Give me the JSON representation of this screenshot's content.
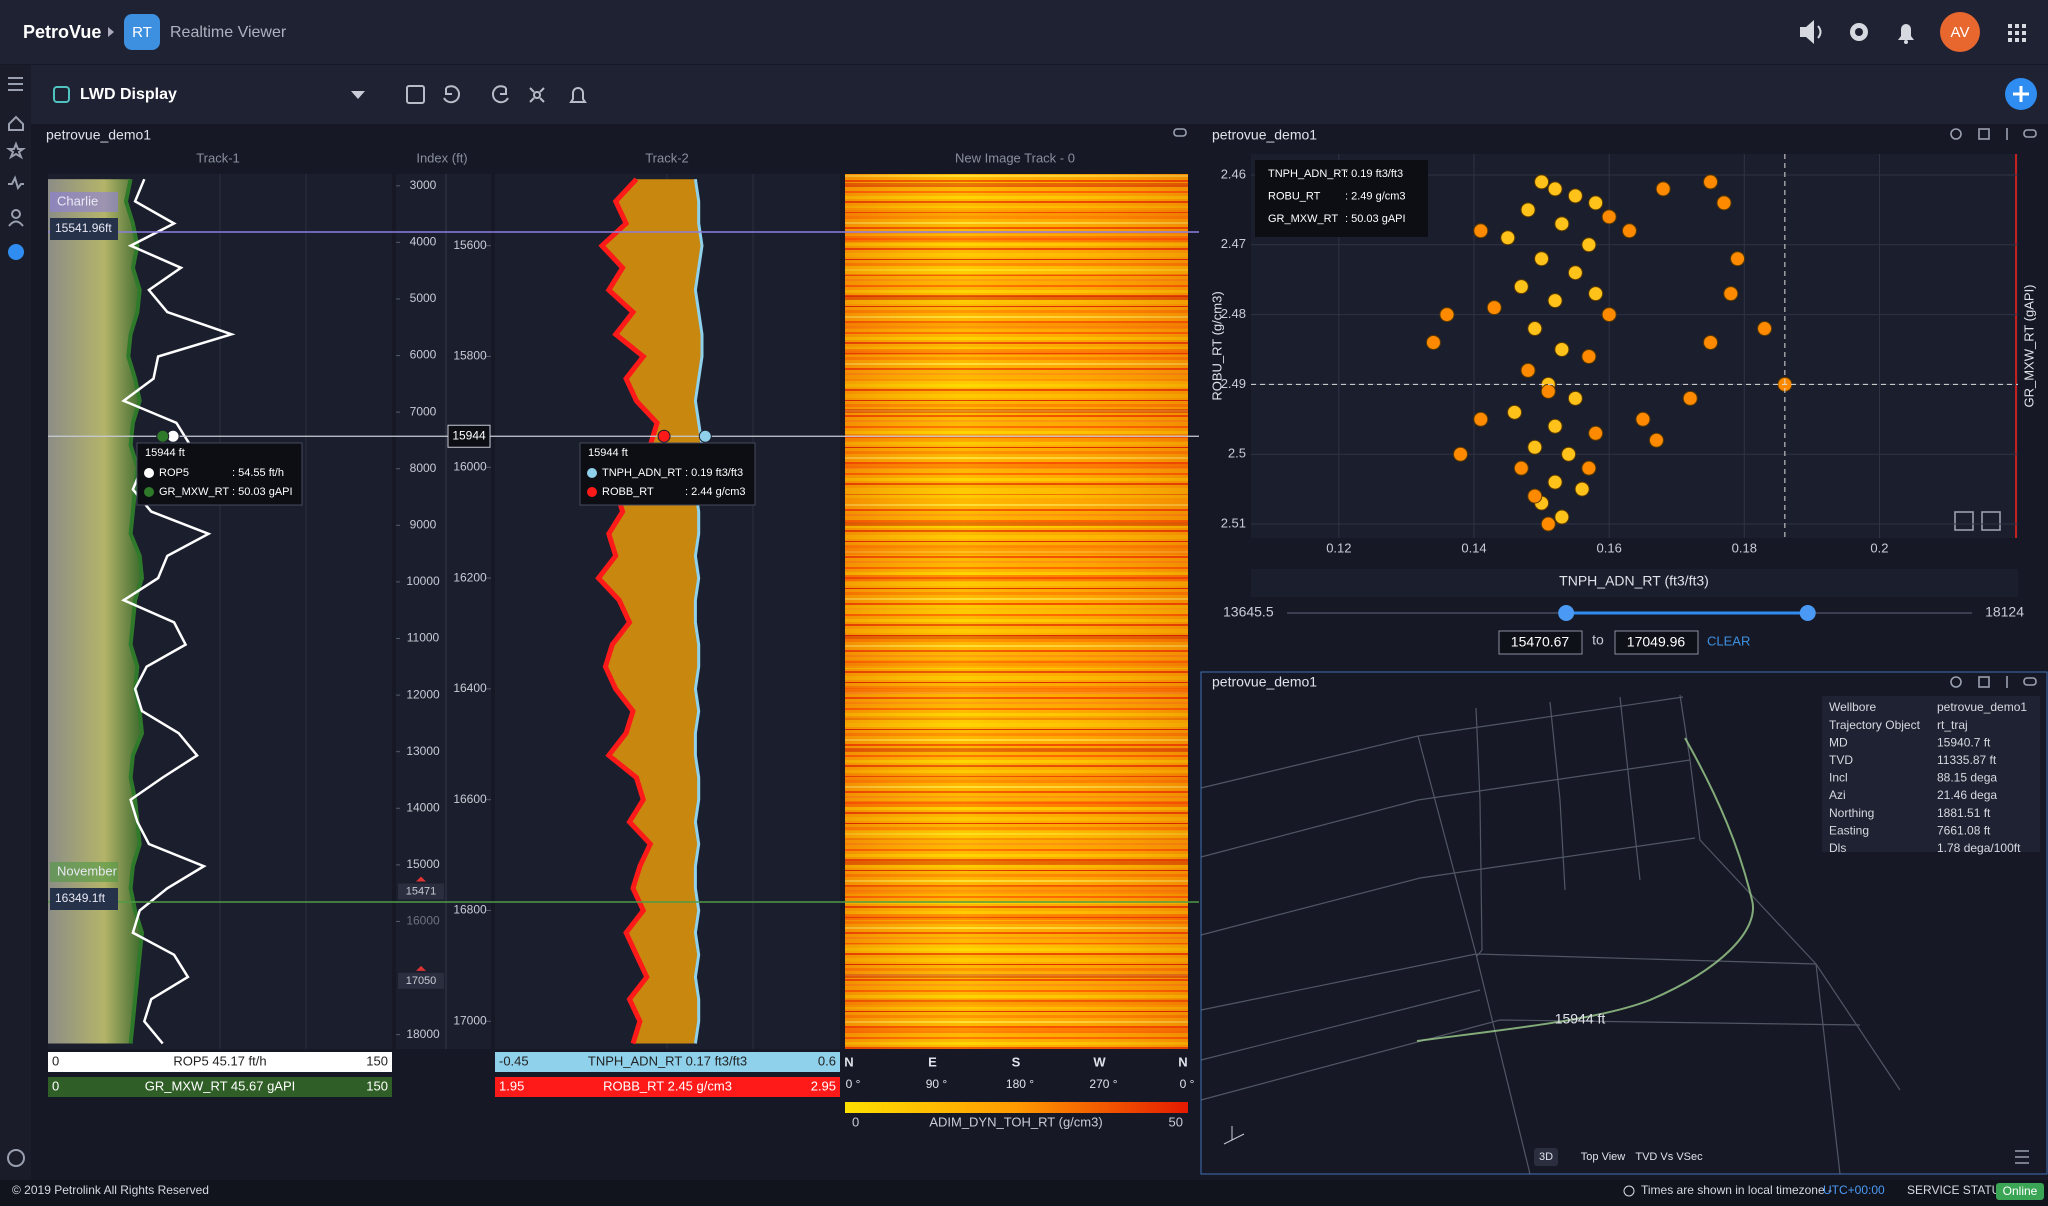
{
  "app": {
    "brand": "PetroVue",
    "badge": "RT",
    "title": "Realtime Viewer",
    "avatar": "AV"
  },
  "toolbar": {
    "display": "LWD Display"
  },
  "chart_data": [
    {
      "type": "well_log",
      "title": "petrovue_demo1",
      "track_titles": [
        "Track-1",
        "Index (ft)",
        "Track-2",
        "New Image Track - 0"
      ],
      "depth": [
        15480,
        15520,
        15560,
        15600,
        15640,
        15680,
        15720,
        15760,
        15800,
        15840,
        15880,
        15920,
        15960,
        16000,
        16040,
        16080,
        16120,
        16160,
        16200,
        16240,
        16280,
        16320,
        16360,
        16400,
        16440,
        16480,
        16520,
        16560,
        16600,
        16640,
        16680,
        16720,
        16760,
        16800,
        16840,
        16880,
        16920,
        16960,
        17000,
        17040
      ],
      "ylim": [
        17049.96,
        15470.67
      ],
      "yticks": [
        15600,
        15800,
        16000,
        16200,
        16400,
        16600,
        16800,
        17000
      ],
      "overview_ylim": [
        18254,
        2792
      ],
      "overview_ticks": [
        3000,
        4000,
        5000,
        6000,
        7000,
        8000,
        9000,
        10000,
        11000,
        12000,
        13000,
        14000,
        15000,
        16000,
        18000
      ],
      "window_labels": [
        15471,
        17050
      ],
      "cursor": 15944,
      "markers": [
        {
          "name": "Charlie",
          "label": "15541.96ft",
          "color": "#8d7fe0"
        },
        {
          "name": "November",
          "label": "16349.1ft",
          "color": "#4f9a45"
        }
      ],
      "curves": [
        {
          "name": "ROP5",
          "color": "#ffffff",
          "xlim": [
            0,
            150
          ],
          "legend": "ROP5 45.17 ft/h",
          "values": [
            42,
            38,
            55,
            36,
            58,
            44,
            52,
            80,
            48,
            46,
            33,
            56,
            62,
            41,
            37,
            45,
            70,
            52,
            48,
            33,
            55,
            60,
            43,
            38,
            41,
            57,
            65,
            50,
            36,
            39,
            44,
            68,
            52,
            40,
            37,
            55,
            61,
            45,
            42,
            50
          ]
        },
        {
          "name": "GR_MXW_RT",
          "color": "#2f7a2a",
          "xlim": [
            0,
            150
          ],
          "legend": "GR_MXW_RT 45.67 gAPI",
          "values": [
            36,
            34,
            37,
            39,
            37,
            40,
            39,
            36,
            35,
            38,
            40,
            37,
            36,
            39,
            38,
            37,
            36,
            40,
            41,
            38,
            37,
            36,
            39,
            38,
            40,
            41,
            37,
            36,
            38,
            39,
            40,
            37,
            36,
            38,
            41,
            40,
            39,
            38,
            37,
            36
          ]
        },
        {
          "name": "TNPH_ADN_RT",
          "color": "#8fd0ea",
          "xlim": [
            -0.45,
            0.6
          ],
          "legend": "TNPH_ADN_RT 0.17 ft3/ft3",
          "values": [
            0.16,
            0.17,
            0.17,
            0.18,
            0.17,
            0.16,
            0.17,
            0.18,
            0.18,
            0.17,
            0.16,
            0.17,
            0.18,
            0.17,
            0.16,
            0.17,
            0.17,
            0.16,
            0.17,
            0.16,
            0.16,
            0.17,
            0.17,
            0.16,
            0.17,
            0.16,
            0.16,
            0.17,
            0.17,
            0.16,
            0.17,
            0.16,
            0.16,
            0.17,
            0.16,
            0.17,
            0.16,
            0.17,
            0.17,
            0.16
          ]
        },
        {
          "name": "ROBB_RT",
          "color": "#ff1a1a",
          "xlim": [
            1.95,
            2.95
          ],
          "legend": "ROBB_RT 2.45 g/cm3",
          "values": [
            2.36,
            2.3,
            2.33,
            2.26,
            2.32,
            2.28,
            2.35,
            2.3,
            2.38,
            2.33,
            2.36,
            2.42,
            2.4,
            2.35,
            2.3,
            2.32,
            2.28,
            2.3,
            2.25,
            2.31,
            2.34,
            2.29,
            2.27,
            2.3,
            2.35,
            2.33,
            2.28,
            2.36,
            2.38,
            2.34,
            2.4,
            2.37,
            2.35,
            2.38,
            2.33,
            2.36,
            2.39,
            2.34,
            2.37,
            2.35
          ]
        }
      ],
      "tooltips": [
        {
          "header": "15944 ft",
          "items": [
            {
              "name": "ROP5",
              "value": 54.55,
              "label": ": 54.55 ft/h",
              "color": "#ffffff"
            },
            {
              "name": "GR_MXW_RT",
              "value": 50.03,
              "label": ": 50.03 gAPI",
              "color": "#2f7a2a"
            }
          ]
        },
        {
          "header": "15944 ft",
          "items": [
            {
              "name": "TNPH_ADN_RT",
              "value": 0.19,
              "label": ": 0.19 ft3/ft3",
              "color": "#8fd0ea"
            },
            {
              "name": "ROBB_RT",
              "value": 2.44,
              "label": ": 2.44 g/cm3",
              "color": "#ff1a1a"
            }
          ]
        }
      ],
      "image": {
        "directions": [
          "N",
          "E",
          "S",
          "W",
          "N"
        ],
        "angles": [
          "0 °",
          "90 °",
          "180 °",
          "270 °",
          "0 °"
        ],
        "colorbar_min": 0,
        "colorbar_max": 50,
        "colorbar_label": "ADIM_DYN_TOH_RT (g/cm3)"
      }
    },
    {
      "type": "scatter",
      "title": "petrovue_demo1",
      "x_label": "TNPH_ADN_RT (ft3/ft3)",
      "y_label": "ROBU_RT (g/cm3)",
      "y2_label": "GR_MXW_RT (gAPI)",
      "xlim": [
        0.107,
        0.2205
      ],
      "xticks": [
        0.12,
        0.14,
        0.16,
        0.18,
        0.2
      ],
      "ylim": [
        2.512,
        2.457
      ],
      "yticks": [
        2.46,
        2.47,
        2.48,
        2.49,
        2.5,
        2.51
      ],
      "grid": true,
      "series": [
        {
          "color": "#ffc21a",
          "x": [
            0.15,
            0.152,
            0.155,
            0.158,
            0.148,
            0.153,
            0.145,
            0.157,
            0.15,
            0.155,
            0.147,
            0.152,
            0.158,
            0.149,
            0.153,
            0.151,
            0.155,
            0.146,
            0.152,
            0.149,
            0.154,
            0.152,
            0.156,
            0.15,
            0.153
          ],
          "values": [
            2.461,
            2.462,
            2.463,
            2.464,
            2.465,
            2.467,
            2.469,
            2.47,
            2.472,
            2.474,
            2.476,
            2.478,
            2.477,
            2.482,
            2.485,
            2.49,
            2.492,
            2.494,
            2.496,
            2.499,
            2.5,
            2.504,
            2.505,
            2.507,
            2.509
          ]
        },
        {
          "color": "#ff8a00",
          "x": [
            0.16,
            0.163,
            0.143,
            0.16,
            0.157,
            0.148,
            0.158,
            0.147,
            0.151,
            0.134,
            0.138,
            0.141,
            0.168,
            0.175,
            0.177,
            0.179,
            0.178,
            0.175,
            0.183,
            0.172,
            0.165,
            0.167,
            0.186,
            0.141,
            0.136,
            0.151,
            0.157,
            0.149
          ],
          "values": [
            2.466,
            2.468,
            2.479,
            2.48,
            2.486,
            2.488,
            2.497,
            2.502,
            2.51,
            2.484,
            2.5,
            2.495,
            2.462,
            2.461,
            2.464,
            2.472,
            2.477,
            2.484,
            2.482,
            2.492,
            2.495,
            2.498,
            2.49,
            2.468,
            2.48,
            2.491,
            2.502,
            2.506
          ]
        }
      ],
      "crosshair": {
        "x": 0.186,
        "y": 2.49
      },
      "tooltip": [
        {
          "name": "TNPH_ADN_RT",
          "label": ": 0.19 ft3/ft3"
        },
        {
          "name": "ROBU_RT",
          "label": ": 2.49 g/cm3"
        },
        {
          "name": "GR_MXW_RT",
          "label": ": 50.03 gAPI"
        }
      ],
      "slider": {
        "min": 13645.5,
        "max": 18124,
        "from": 15470.67,
        "to": 17049.96,
        "to_word": "to",
        "clear": "CLEAR"
      }
    }
  ],
  "well_3d": {
    "title": "petrovue_demo1",
    "info": [
      [
        "Wellbore",
        "petrovue_demo1"
      ],
      [
        "Trajectory Object",
        "rt_traj"
      ],
      [
        "MD",
        "15940.7 ft"
      ],
      [
        "TVD",
        "11335.87 ft"
      ],
      [
        "Incl",
        "88.15 dega"
      ],
      [
        "Azi",
        "21.46 dega"
      ],
      [
        "Northing",
        "1881.51 ft"
      ],
      [
        "Easting",
        "7661.08 ft"
      ],
      [
        "Dls",
        "1.78 dega/100ft"
      ]
    ],
    "point_label": "15944 ft",
    "views": [
      "3D",
      "Top View",
      "TVD Vs VSec"
    ]
  },
  "footer": {
    "copyright": "© 2019 Petrolink All Rights Reserved",
    "timezone": "Times are shown in local timezone - ",
    "tz": "UTC+00:00",
    "status": "SERVICE STATUS",
    "state": "Online"
  }
}
